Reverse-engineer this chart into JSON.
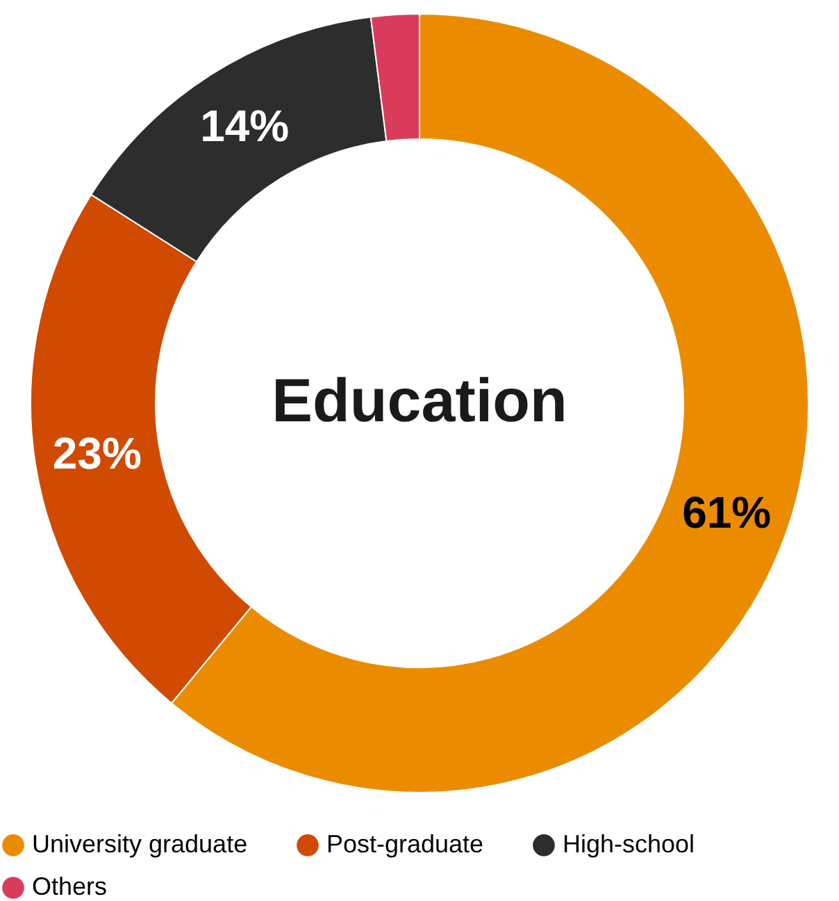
{
  "chart_data": {
    "type": "donut",
    "title": "Education",
    "categories": [
      "University graduate",
      "Post-graduate",
      "High-school",
      "Others"
    ],
    "values": [
      61,
      23,
      14,
      2
    ],
    "colors": [
      "#eb8c00",
      "#d04a02",
      "#2d2d2d",
      "#db3b5b"
    ],
    "value_labels": [
      "61%",
      "23%",
      "14%",
      null
    ],
    "legend": "bottom"
  }
}
